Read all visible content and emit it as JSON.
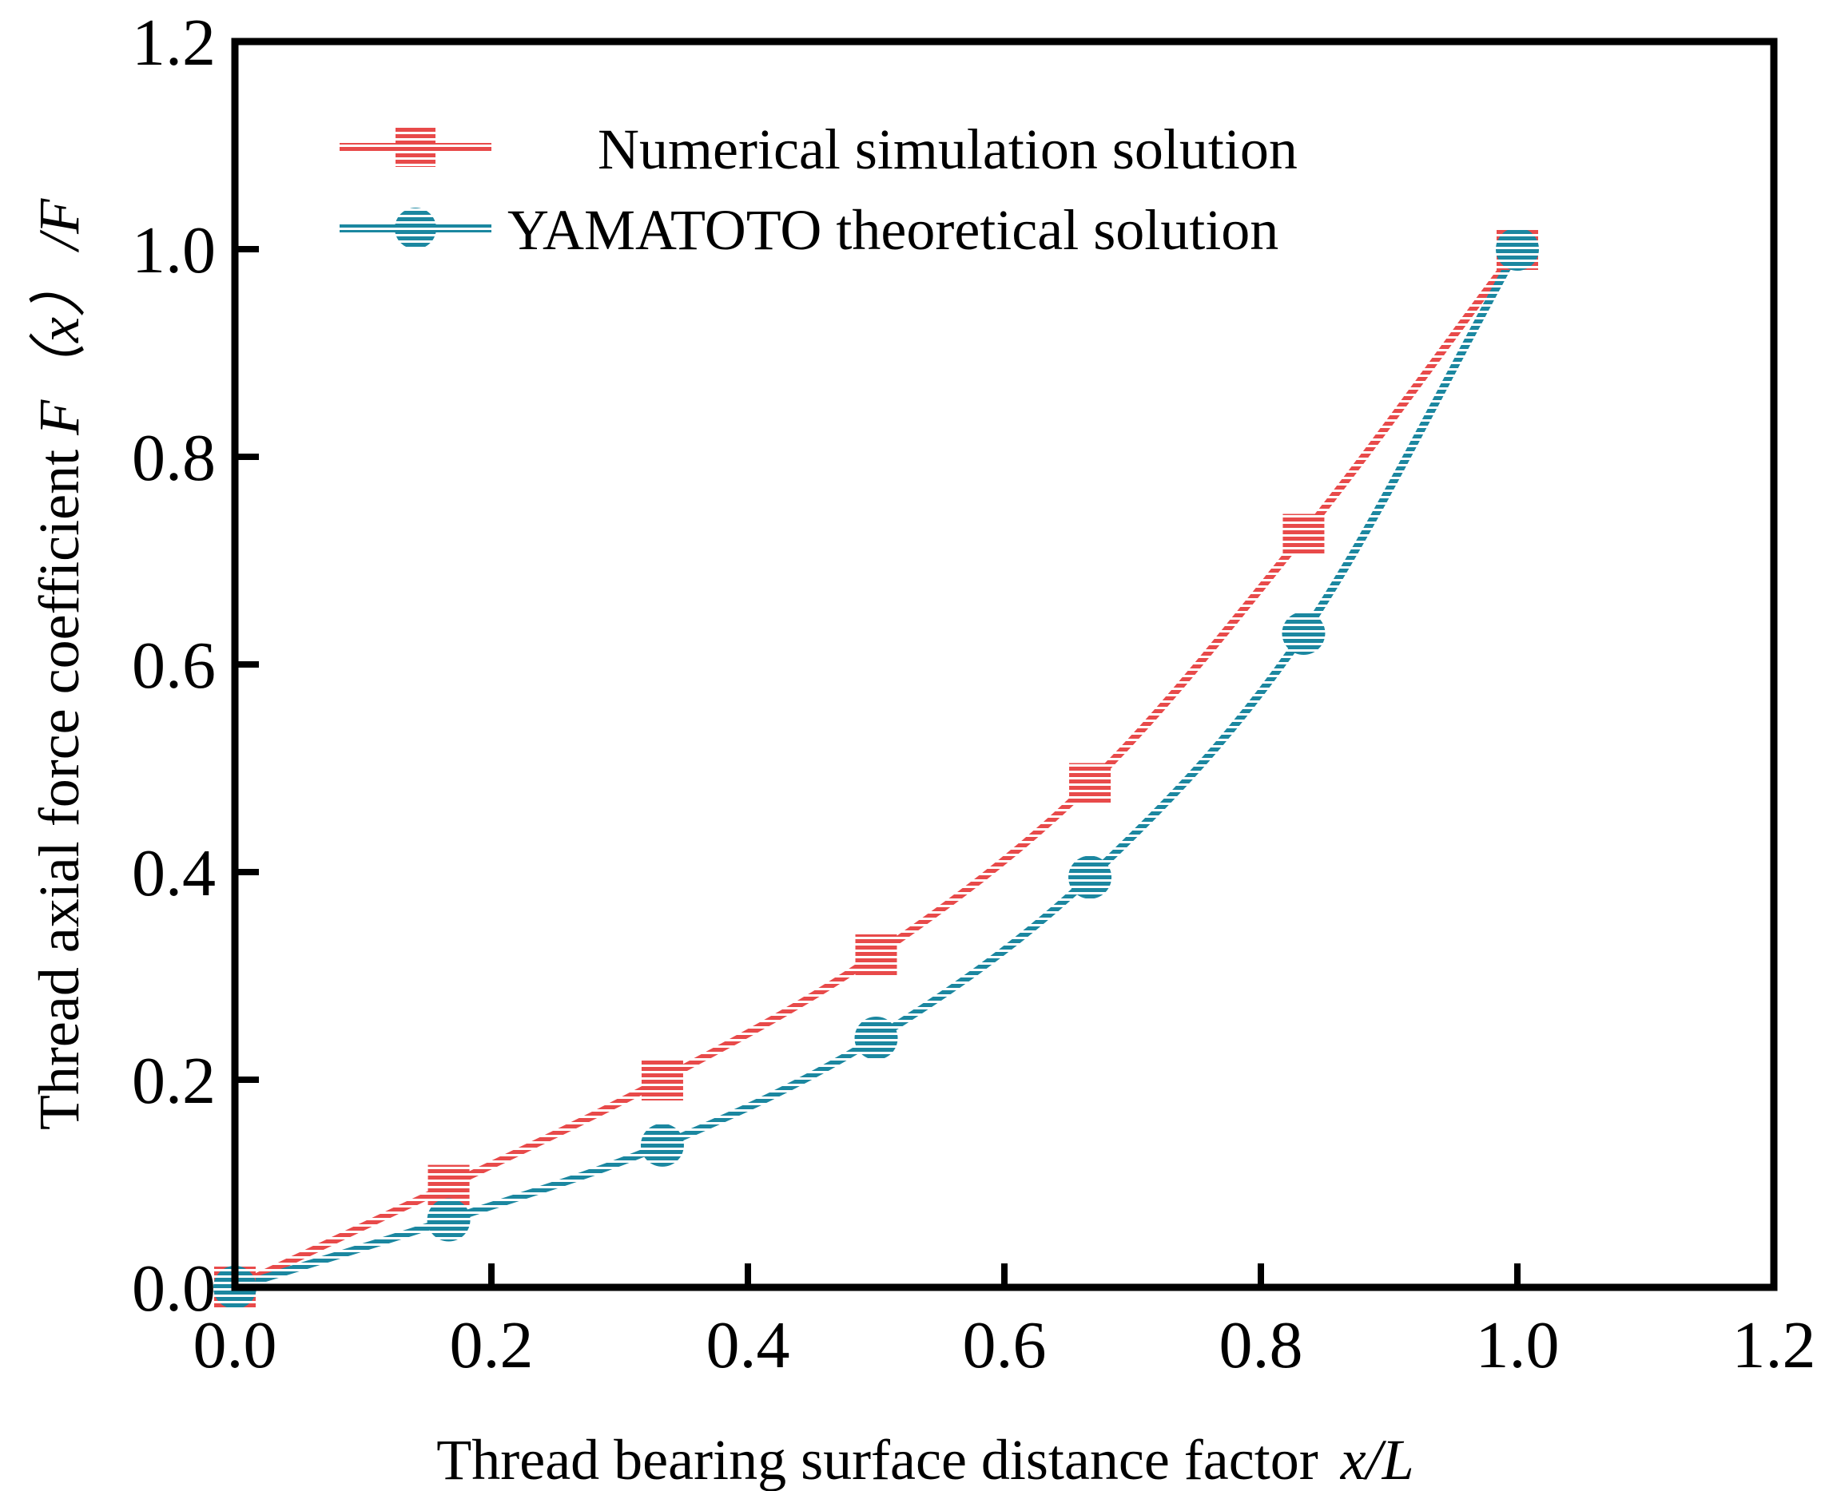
{
  "chart_data": {
    "type": "line",
    "xlabel": "Thread bearing surface distance factor",
    "xlabel_var": "x/L",
    "ylabel": "Thread axial force coefficient",
    "ylabel_var_f": "F",
    "ylabel_var_x": "（x）",
    "ylabel_var_tail": "/F",
    "xlim": [
      0,
      1.2
    ],
    "ylim": [
      0,
      1.2
    ],
    "xticks": [
      "0.0",
      "0.2",
      "0.4",
      "0.6",
      "0.8",
      "1.0",
      "1.2"
    ],
    "yticks": [
      "0.0",
      "0.2",
      "0.4",
      "0.6",
      "0.8",
      "1.0",
      "1.2"
    ],
    "grid": false,
    "legend_position": "top-left",
    "series": [
      {
        "name": "Numerical simulation solution",
        "marker": "square",
        "color": "#e84a4a",
        "x": [
          0,
          0.1667,
          0.3333,
          0.5,
          0.6667,
          0.8333,
          1.0
        ],
        "values": [
          0.0,
          0.098,
          0.2,
          0.32,
          0.485,
          0.725,
          1.0
        ]
      },
      {
        "name": "YAMATOTO theoretical solution",
        "marker": "circle",
        "color": "#1b87a0",
        "x": [
          0,
          0.1667,
          0.3333,
          0.5,
          0.6667,
          0.8333,
          1.0
        ],
        "values": [
          0.0,
          0.065,
          0.137,
          0.24,
          0.395,
          0.63,
          1.0
        ]
      }
    ]
  }
}
